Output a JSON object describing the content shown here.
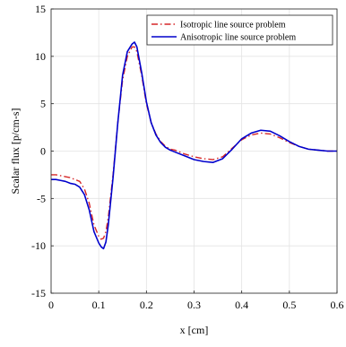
{
  "chart_data": {
    "type": "line",
    "xlabel": "x [cm]",
    "ylabel": "Scalar flux [p/cm-s]",
    "xlim": [
      0,
      0.6
    ],
    "ylim": [
      -15,
      15
    ],
    "xticks": [
      0,
      0.1,
      0.2,
      0.3,
      0.4,
      0.5,
      0.6
    ],
    "yticks": [
      -15,
      -10,
      -5,
      0,
      5,
      10,
      15
    ],
    "xtick_labels": [
      "0",
      "0.1",
      "0.2",
      "0.3",
      "0.4",
      "0.5",
      "0.6"
    ],
    "ytick_labels": [
      "-15",
      "-10",
      "-5",
      "0",
      "5",
      "10",
      "15"
    ],
    "grid": true,
    "legend_position": "top-right",
    "series": [
      {
        "name": "Isotropic line source problem",
        "color": "#d62728",
        "dash": "dash-dot",
        "x": [
          0,
          0.01,
          0.02,
          0.03,
          0.04,
          0.05,
          0.06,
          0.07,
          0.08,
          0.09,
          0.1,
          0.105,
          0.11,
          0.115,
          0.12,
          0.13,
          0.14,
          0.15,
          0.16,
          0.17,
          0.175,
          0.18,
          0.19,
          0.2,
          0.21,
          0.22,
          0.23,
          0.24,
          0.25,
          0.26,
          0.28,
          0.3,
          0.32,
          0.34,
          0.36,
          0.38,
          0.4,
          0.42,
          0.44,
          0.46,
          0.48,
          0.5,
          0.52,
          0.54,
          0.56,
          0.58,
          0.6
        ],
        "y": [
          -2.5,
          -2.5,
          -2.6,
          -2.7,
          -2.8,
          -3.0,
          -3.2,
          -4.0,
          -5.5,
          -7.8,
          -9.0,
          -9.3,
          -9.2,
          -8.5,
          -7.0,
          -2.5,
          3.0,
          7.5,
          10.0,
          11.0,
          11.0,
          10.5,
          8.0,
          5.0,
          3.0,
          1.8,
          1.0,
          0.5,
          0.2,
          0.1,
          -0.3,
          -0.6,
          -0.8,
          -0.9,
          -0.6,
          0.3,
          1.2,
          1.7,
          1.9,
          1.8,
          1.4,
          0.9,
          0.5,
          0.2,
          0.1,
          0.0,
          0.0
        ]
      },
      {
        "name": "Anisotropic line source problem",
        "color": "#0000cc",
        "dash": "solid",
        "x": [
          0,
          0.01,
          0.02,
          0.03,
          0.04,
          0.05,
          0.06,
          0.07,
          0.08,
          0.09,
          0.1,
          0.105,
          0.11,
          0.115,
          0.12,
          0.13,
          0.14,
          0.15,
          0.16,
          0.17,
          0.175,
          0.18,
          0.19,
          0.2,
          0.21,
          0.22,
          0.23,
          0.24,
          0.25,
          0.26,
          0.28,
          0.3,
          0.32,
          0.34,
          0.36,
          0.38,
          0.4,
          0.42,
          0.44,
          0.46,
          0.48,
          0.5,
          0.52,
          0.54,
          0.56,
          0.58,
          0.6
        ],
        "y": [
          -3.0,
          -3.0,
          -3.1,
          -3.2,
          -3.4,
          -3.5,
          -3.8,
          -4.6,
          -6.2,
          -8.5,
          -9.7,
          -10.1,
          -10.3,
          -9.6,
          -7.8,
          -2.8,
          3.0,
          8.0,
          10.5,
          11.3,
          11.5,
          11.0,
          8.3,
          5.2,
          3.0,
          1.7,
          0.9,
          0.4,
          0.1,
          -0.1,
          -0.5,
          -0.9,
          -1.1,
          -1.2,
          -0.8,
          0.2,
          1.3,
          1.9,
          2.2,
          2.1,
          1.6,
          1.0,
          0.5,
          0.2,
          0.1,
          0.0,
          0.0
        ]
      }
    ]
  }
}
